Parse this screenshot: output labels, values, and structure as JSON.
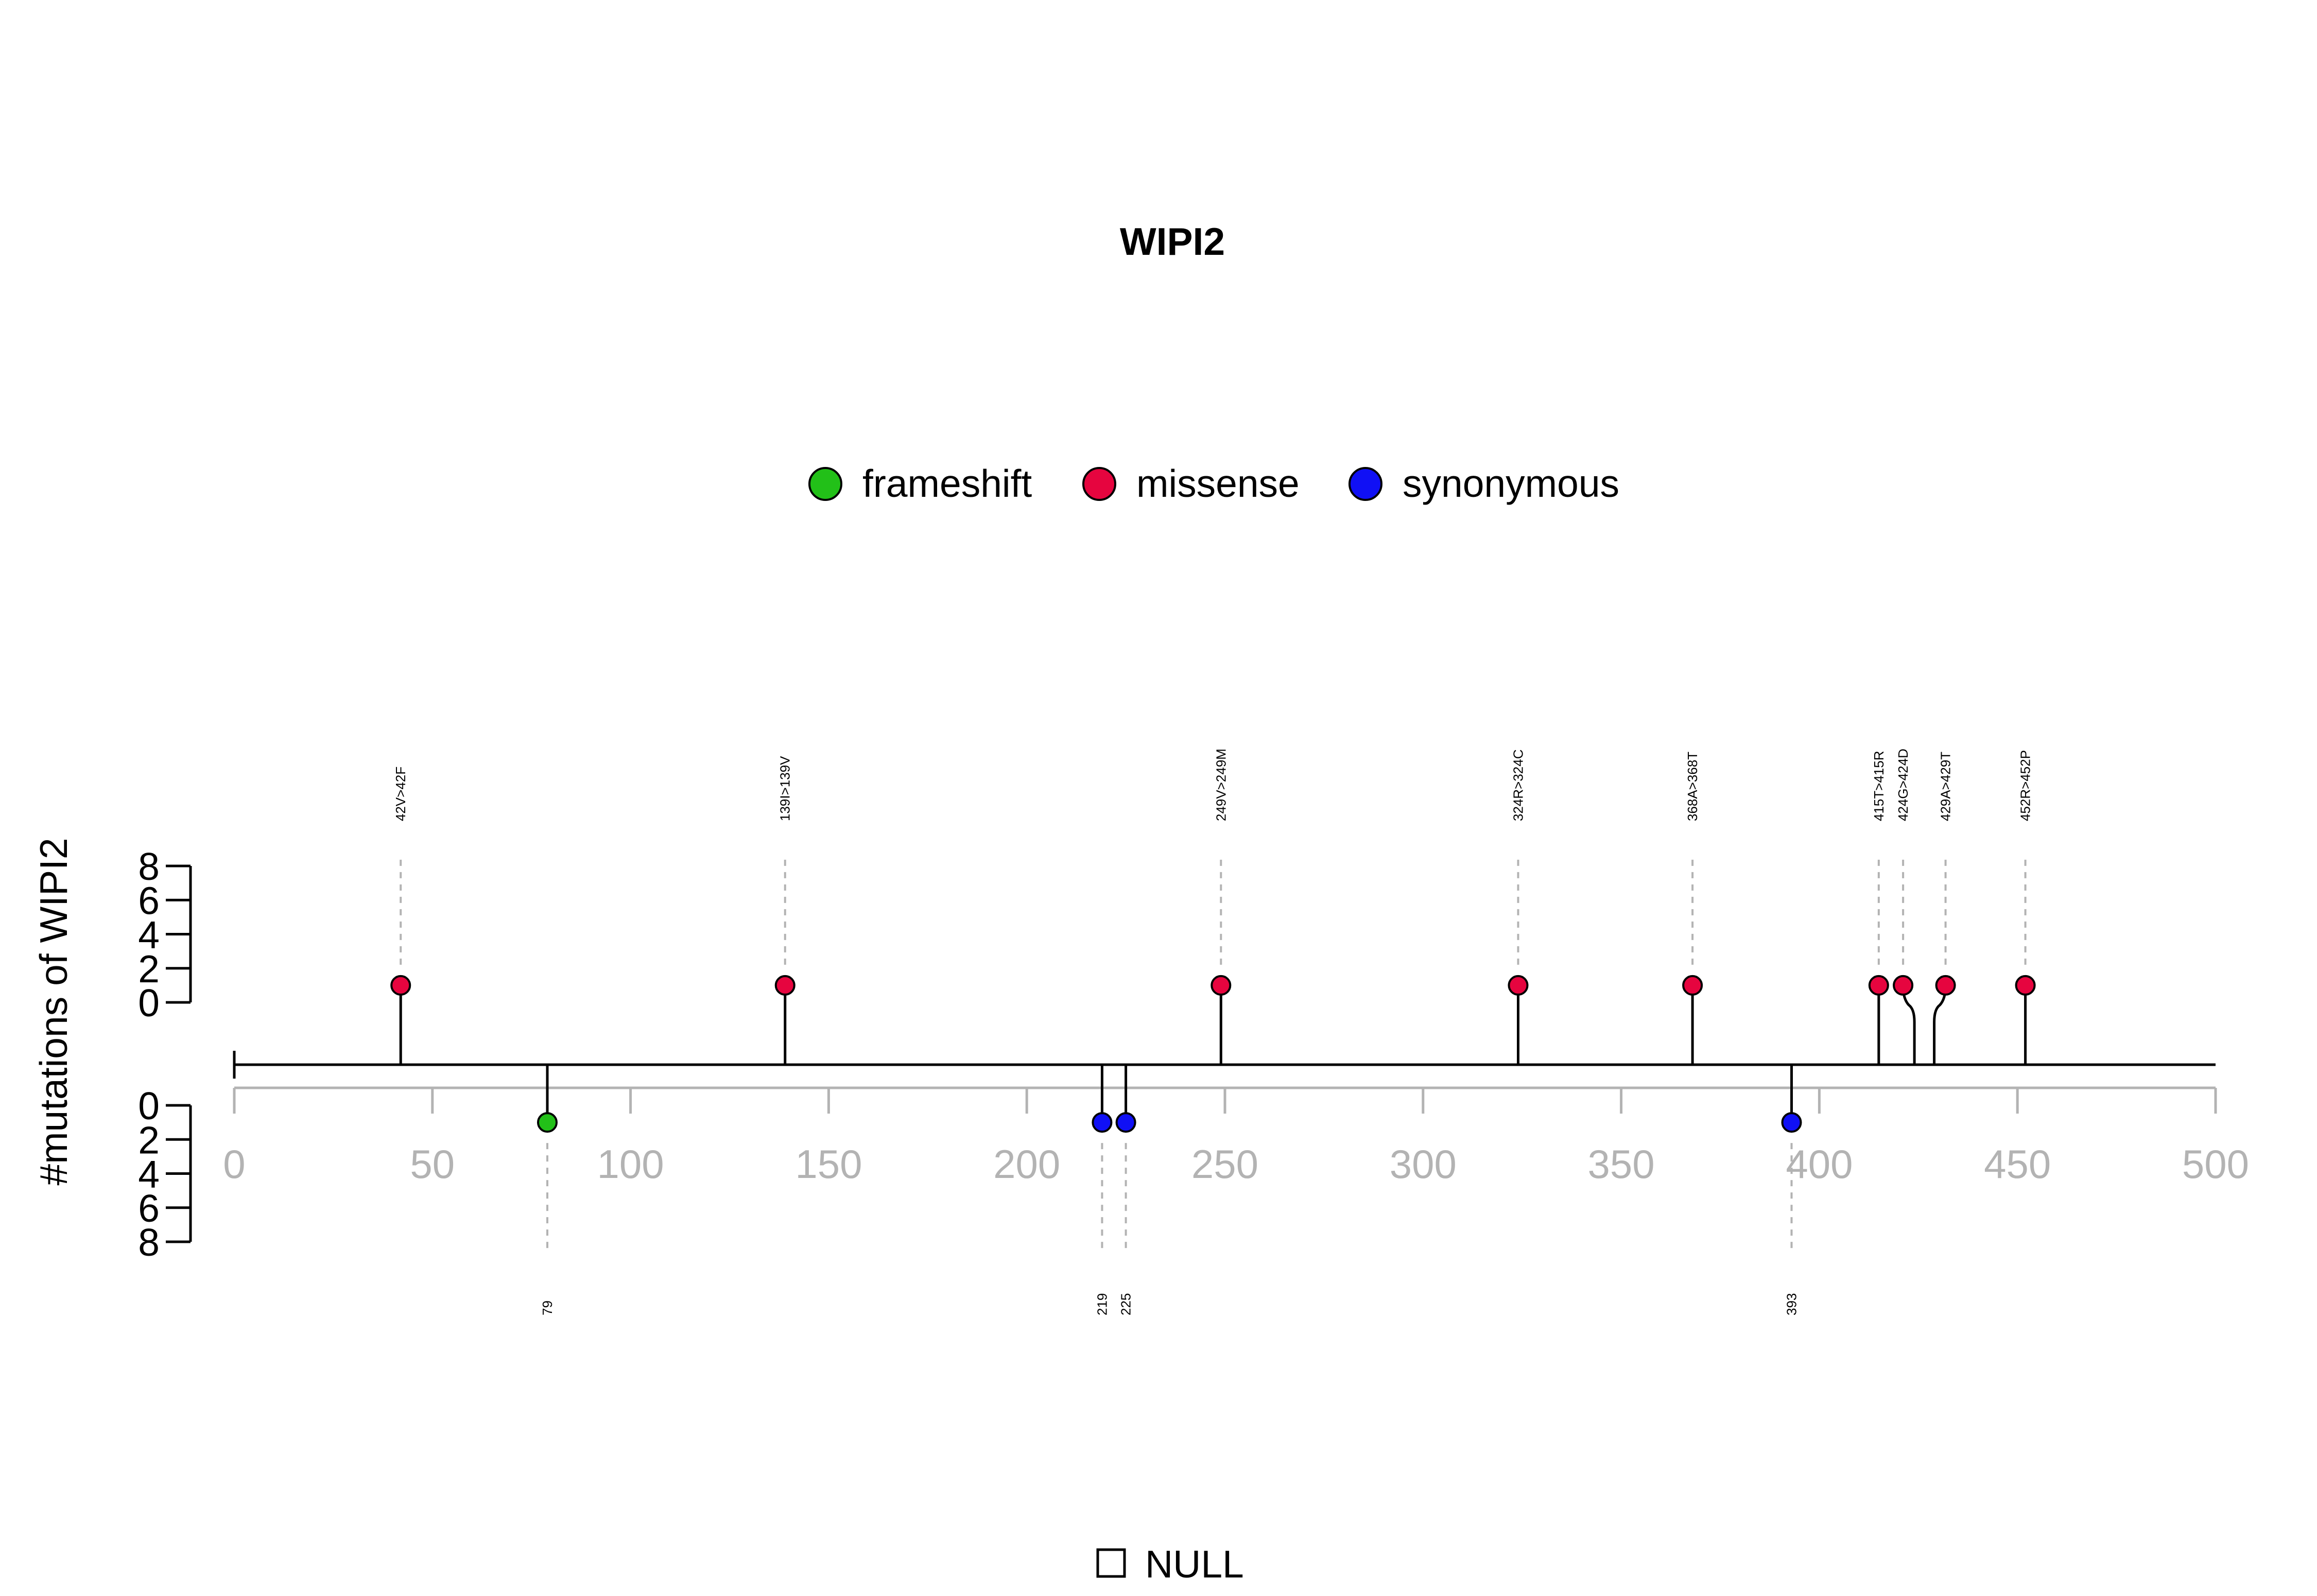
{
  "chart_data": {
    "type": "lollipop",
    "title": "WIPI2",
    "ylabel": "#mutations of WIPI2",
    "xlim": [
      0,
      500
    ],
    "x_ticks": [
      "0",
      "50",
      "100",
      "150",
      "200",
      "250",
      "300",
      "350",
      "400",
      "450",
      "500"
    ],
    "y_ticks_upper": [
      "0",
      "2",
      "4",
      "6",
      "8"
    ],
    "y_ticks_lower": [
      "0",
      "2",
      "4",
      "6",
      "8"
    ],
    "ylim": [
      0,
      8
    ],
    "legend": [
      {
        "name": "frameshift",
        "color": "#22c018"
      },
      {
        "name": "missense",
        "color": "#e6053f"
      },
      {
        "name": "synonymous",
        "color": "#1010f5"
      }
    ],
    "domains_legend": [
      {
        "name": "NULL",
        "color": "#ffffff"
      }
    ],
    "upper": [
      {
        "position": 42,
        "count": 1,
        "type": "missense",
        "label": "42V>42F"
      },
      {
        "position": 139,
        "count": 1,
        "type": "missense",
        "label": "139I>139V"
      },
      {
        "position": 249,
        "count": 1,
        "type": "missense",
        "label": "249V>249M"
      },
      {
        "position": 324,
        "count": 1,
        "type": "missense",
        "label": "324R>324C"
      },
      {
        "position": 368,
        "count": 1,
        "type": "missense",
        "label": "368A>368T"
      },
      {
        "position": 415,
        "count": 1,
        "type": "missense",
        "label": "415T>415R"
      },
      {
        "position": 424,
        "count": 1,
        "type": "missense",
        "label": "424G>424D"
      },
      {
        "position": 429,
        "count": 1,
        "type": "missense",
        "label": "429A>429T"
      },
      {
        "position": 452,
        "count": 1,
        "type": "missense",
        "label": "452R>452P"
      }
    ],
    "lower": [
      {
        "position": 79,
        "count": 1,
        "type": "frameshift",
        "label": "79"
      },
      {
        "position": 219,
        "count": 1,
        "type": "synonymous",
        "label": "219"
      },
      {
        "position": 225,
        "count": 1,
        "type": "synonymous",
        "label": "225"
      },
      {
        "position": 393,
        "count": 1,
        "type": "synonymous",
        "label": "393"
      }
    ]
  }
}
